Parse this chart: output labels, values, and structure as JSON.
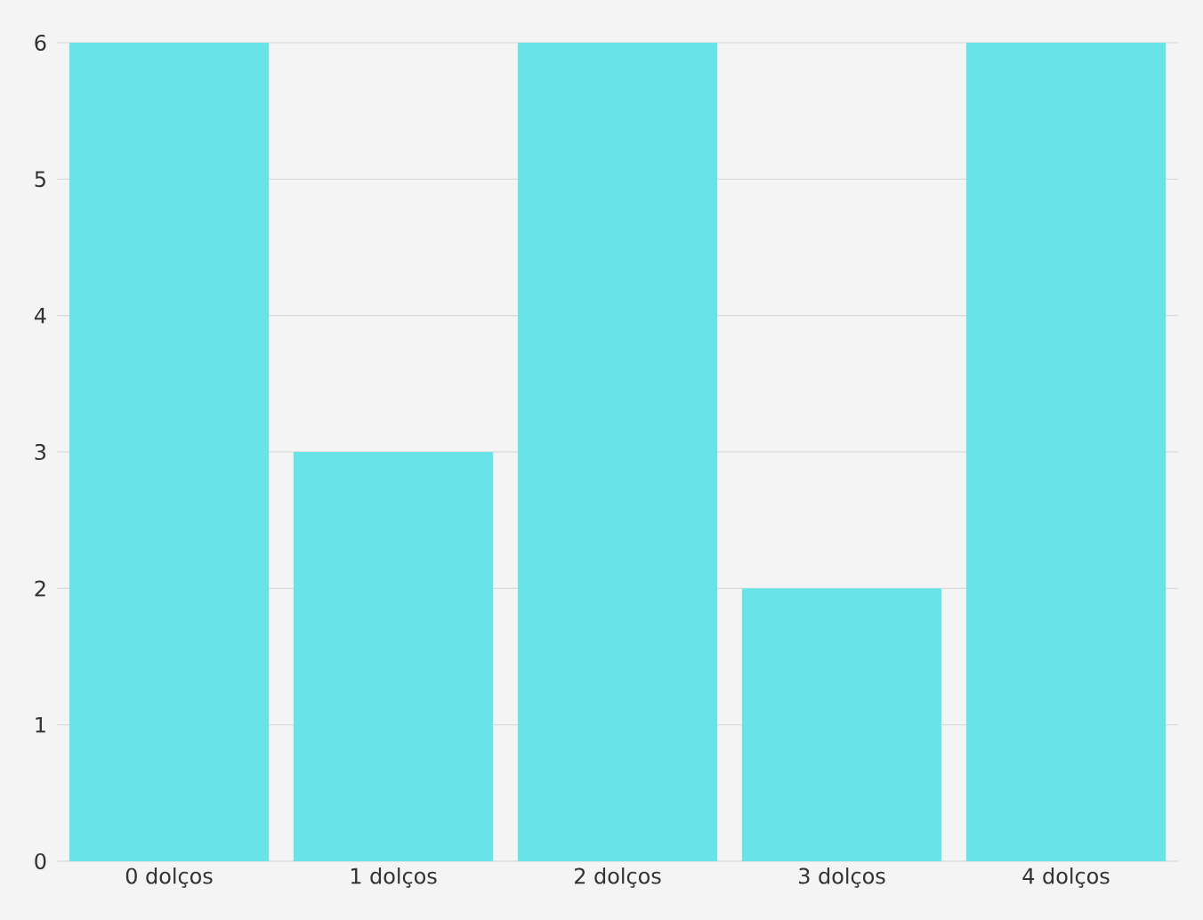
{
  "chart_data": {
    "type": "bar",
    "categories": [
      "0 dolços",
      "1 dolços",
      "2 dolços",
      "3 dolços",
      "4 dolços"
    ],
    "values": [
      6,
      3,
      6,
      2,
      6
    ],
    "color": "#68e4e8",
    "ylim": [
      0,
      6
    ],
    "yticks": [
      0,
      1,
      2,
      3,
      4,
      5,
      6
    ],
    "grid": "y"
  }
}
